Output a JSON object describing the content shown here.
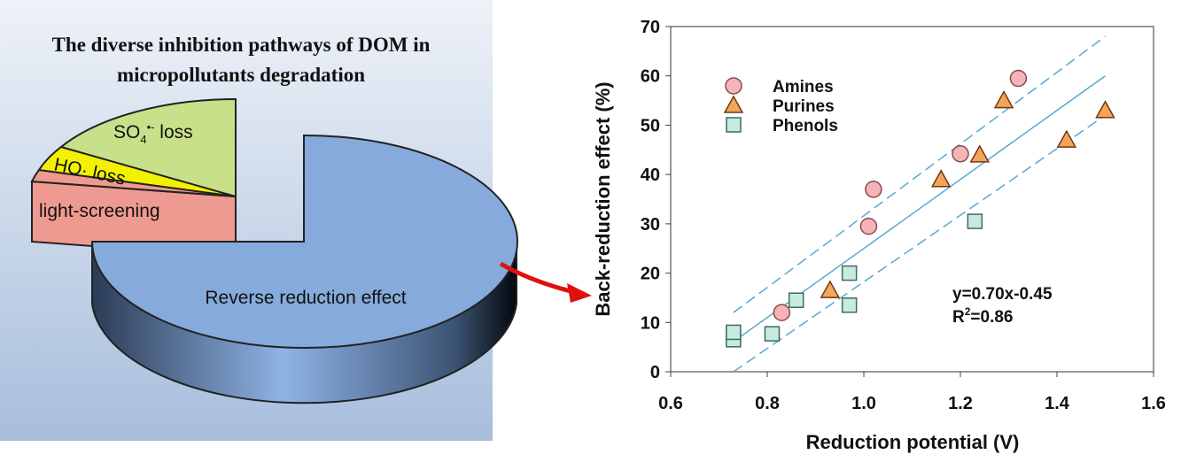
{
  "pie_panel": {
    "title_line1": "The diverse inhibition pathways of DOM in",
    "title_line2": "micropollutants degradation",
    "slices": [
      {
        "label": "Reverse reduction effect",
        "percent": 75,
        "color": "#85aadb"
      },
      {
        "label_main": "SO",
        "label_sub": "4",
        "label_sup": "•-",
        "label_tail": " loss",
        "percent": 16,
        "color": "#c8e08a"
      },
      {
        "label": "HO· loss",
        "percent": 4.5,
        "color": "#f2f200"
      },
      {
        "label": "light-screening",
        "percent": 4.5,
        "color": "#ef9a90"
      }
    ],
    "arrow_color": "#e01010"
  },
  "chart_data": {
    "type": "scatter",
    "xlabel": "Reduction potential (V)",
    "ylabel": "Back-reduction effect (%)",
    "xlim": [
      0.6,
      1.6
    ],
    "ylim": [
      0,
      70
    ],
    "xticks": [
      "0.6",
      "0.8",
      "1.0",
      "1.2",
      "1.4",
      "1.6"
    ],
    "yticks": [
      "0",
      "10",
      "20",
      "30",
      "40",
      "50",
      "60",
      "70"
    ],
    "grid": false,
    "legend_position": "top-left",
    "series": [
      {
        "name": "Amines",
        "marker": "circle",
        "fill": "#f5b5b8",
        "stroke": "#8a4a4a",
        "x": [
          0.83,
          1.01,
          1.02,
          1.2,
          1.32
        ],
        "y": [
          12,
          29.5,
          37,
          44.2,
          59.5
        ]
      },
      {
        "name": "Purines",
        "marker": "triangle",
        "fill": "#f5a55a",
        "stroke": "#6a3a10",
        "x": [
          0.93,
          1.16,
          1.24,
          1.29,
          1.42,
          1.5
        ],
        "y": [
          16.5,
          39,
          44,
          55,
          47,
          53
        ]
      },
      {
        "name": "Phenols",
        "marker": "square",
        "fill": "#c6ece0",
        "stroke": "#3f6a60",
        "x": [
          0.73,
          0.73,
          0.81,
          0.86,
          0.97,
          0.97,
          1.23
        ],
        "y": [
          6.5,
          8,
          7.7,
          14.5,
          20,
          13.5,
          30.5
        ]
      }
    ],
    "fit": {
      "slope": 70,
      "intercept": -45,
      "x_range": [
        0.73,
        1.5
      ],
      "color": "#5aa8d0"
    },
    "confidence_band": {
      "upper": [
        [
          0.73,
          12
        ],
        [
          1.5,
          68
        ]
      ],
      "lower": [
        [
          0.73,
          0
        ],
        [
          1.5,
          52
        ]
      ]
    },
    "equation": "y=0.70x-0.45",
    "r2_label": "R",
    "r2_sup": "2",
    "r2_value": "=0.86"
  }
}
